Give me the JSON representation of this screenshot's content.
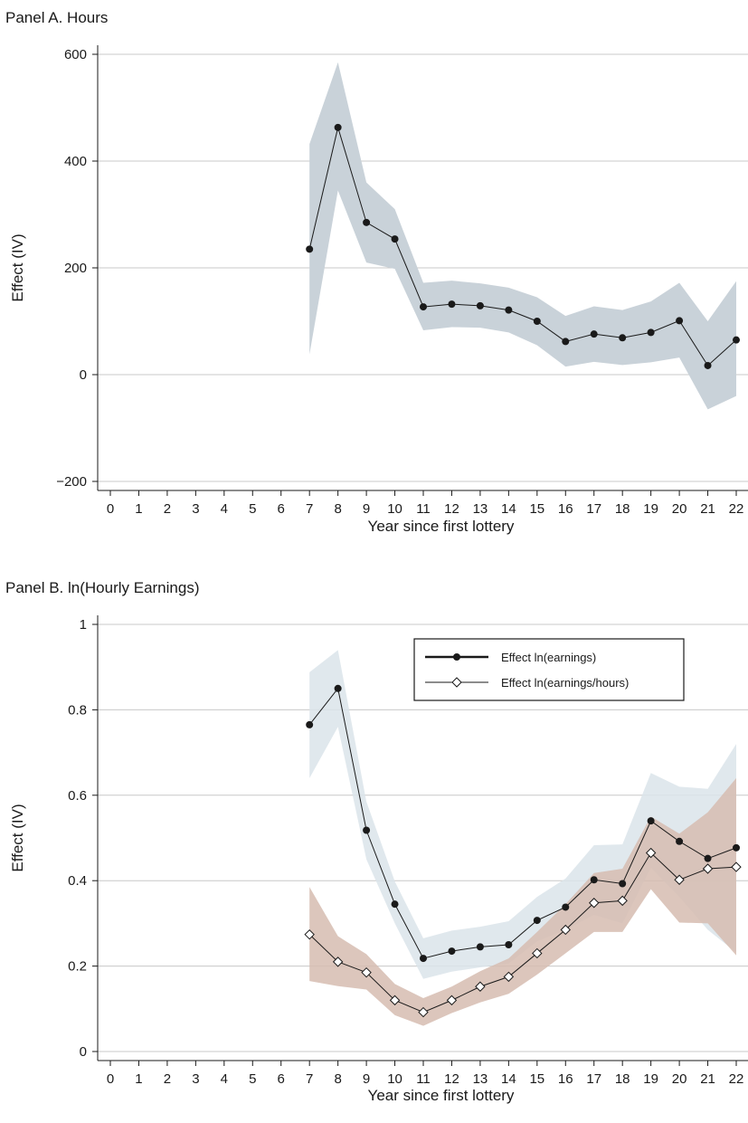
{
  "chart_data": [
    {
      "type": "line",
      "panel_title": "Panel A. Hours",
      "xlabel": "Year since first lottery",
      "ylabel": "Effect (IV)",
      "xlim": [
        0,
        22
      ],
      "ylim": [
        -200,
        600
      ],
      "x_ticks": [
        0,
        1,
        2,
        3,
        4,
        5,
        6,
        7,
        8,
        9,
        10,
        11,
        12,
        13,
        14,
        15,
        16,
        17,
        18,
        19,
        20,
        21,
        22
      ],
      "y_ticks": [
        -200,
        0,
        200,
        400,
        600
      ],
      "y_tick_labels": [
        "−200",
        "0",
        "200",
        "400",
        "600"
      ],
      "grid": "horizontal",
      "series": [
        {
          "x": [
            7,
            8,
            9,
            10,
            11,
            12,
            13,
            14,
            15,
            16,
            17,
            18,
            19,
            20,
            21,
            22
          ],
          "values": [
            235,
            463,
            285,
            254,
            127,
            132,
            129,
            121,
            100,
            62,
            76,
            69,
            79,
            101,
            17,
            65
          ],
          "ci_lower": [
            38,
            345,
            210,
            198,
            83,
            89,
            88,
            79,
            55,
            15,
            24,
            18,
            23,
            32,
            -65,
            -40
          ],
          "ci_upper": [
            432,
            585,
            360,
            310,
            172,
            176,
            171,
            163,
            145,
            110,
            128,
            121,
            137,
            172,
            100,
            175
          ],
          "marker": "filled-circle",
          "band_color": "#c9d2d9",
          "line_color": "#1a1a1a"
        }
      ]
    },
    {
      "type": "line",
      "panel_title": "Panel B. ln(Hourly Earnings)",
      "xlabel": "Year since first lottery",
      "ylabel": "Effect (IV)",
      "xlim": [
        0,
        22
      ],
      "ylim": [
        0,
        1
      ],
      "x_ticks": [
        0,
        1,
        2,
        3,
        4,
        5,
        6,
        7,
        8,
        9,
        10,
        11,
        12,
        13,
        14,
        15,
        16,
        17,
        18,
        19,
        20,
        21,
        22
      ],
      "y_ticks": [
        0,
        0.2,
        0.4,
        0.6,
        0.8,
        1
      ],
      "y_tick_labels": [
        "0",
        "0.2",
        "0.4",
        "0.6",
        "0.8",
        "1"
      ],
      "grid": "horizontal",
      "legend_position": "top-right",
      "series": [
        {
          "name": "Effect ln(earnings)",
          "x": [
            7,
            8,
            9,
            10,
            11,
            12,
            13,
            14,
            15,
            16,
            17,
            18,
            19,
            20,
            21,
            22
          ],
          "values": [
            0.765,
            0.85,
            0.518,
            0.345,
            0.218,
            0.235,
            0.245,
            0.25,
            0.307,
            0.338,
            0.402,
            0.393,
            0.54,
            0.492,
            0.452,
            0.477
          ],
          "ci_lower": [
            0.64,
            0.76,
            0.45,
            0.3,
            0.17,
            0.187,
            0.197,
            0.206,
            0.258,
            0.285,
            0.32,
            0.3,
            0.43,
            0.362,
            0.285,
            0.232
          ],
          "ci_upper": [
            0.888,
            0.94,
            0.585,
            0.398,
            0.265,
            0.283,
            0.292,
            0.305,
            0.362,
            0.405,
            0.483,
            0.485,
            0.652,
            0.62,
            0.615,
            0.72
          ],
          "marker": "filled-circle",
          "band_color": "#dbe4ea",
          "line_color": "#1a1a1a"
        },
        {
          "name": "Effect ln(earnings/hours)",
          "x": [
            7,
            8,
            9,
            10,
            11,
            12,
            13,
            14,
            15,
            16,
            17,
            18,
            19,
            20,
            21,
            22
          ],
          "values": [
            0.274,
            0.21,
            0.185,
            0.12,
            0.092,
            0.12,
            0.152,
            0.175,
            0.23,
            0.285,
            0.348,
            0.353,
            0.465,
            0.402,
            0.428,
            0.432
          ],
          "ci_lower": [
            0.165,
            0.153,
            0.145,
            0.085,
            0.06,
            0.09,
            0.115,
            0.135,
            0.18,
            0.23,
            0.28,
            0.28,
            0.38,
            0.302,
            0.3,
            0.225
          ],
          "ci_upper": [
            0.385,
            0.27,
            0.228,
            0.158,
            0.125,
            0.152,
            0.188,
            0.218,
            0.28,
            0.345,
            0.418,
            0.428,
            0.55,
            0.51,
            0.56,
            0.64
          ],
          "marker": "hollow-diamond",
          "band_color": "#d6bcb0",
          "line_color": "#1a1a1a"
        }
      ]
    }
  ]
}
